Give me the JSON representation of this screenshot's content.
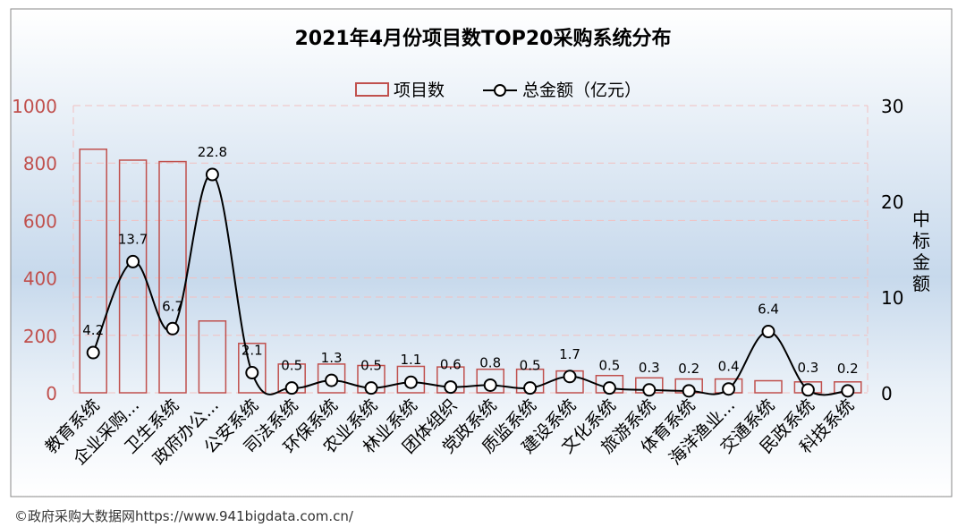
{
  "chart_data": {
    "type": "bar",
    "title": "2021年4月份项目数TOP20采购系统分布",
    "categories": [
      "教育系统",
      "企业采购...",
      "卫生系统",
      "政府办公...",
      "公安系统",
      "司法系统",
      "环保系统",
      "农业系统",
      "林业系统",
      "团体组织",
      "党政系统",
      "质监系统",
      "建设系统",
      "文化系统",
      "旅游系统",
      "体育系统",
      "海洋渔业...",
      "交通系统",
      "民政系统",
      "科技系统"
    ],
    "series": [
      {
        "name": "项目数",
        "type": "bar",
        "axis": "left",
        "values": [
          848,
          810,
          805,
          250,
          172,
          100,
          100,
          95,
          92,
          90,
          82,
          82,
          76,
          60,
          52,
          48,
          48,
          42,
          38,
          38
        ]
      },
      {
        "name": "总金额（亿元）",
        "type": "line",
        "axis": "right",
        "values": [
          4.2,
          13.7,
          6.7,
          22.8,
          2.1,
          0.5,
          1.3,
          0.5,
          1.1,
          0.6,
          0.8,
          0.5,
          1.7,
          0.5,
          0.3,
          0.2,
          0.4,
          6.4,
          0.3,
          0.2
        ]
      }
    ],
    "y_left": {
      "ylim": [
        0,
        1000
      ],
      "ticks": [
        "0",
        "200",
        "400",
        "600",
        "800",
        "1000"
      ]
    },
    "y_right": {
      "label": "中标金额",
      "ylim": [
        0,
        30
      ],
      "ticks": [
        "0",
        "10",
        "20",
        "30"
      ]
    },
    "legend": "top-center",
    "colors": {
      "bar": "#c0504d",
      "line": "#000000",
      "left_axis": "#c0504d",
      "grid": "#f2c0c0"
    }
  },
  "footer": "©政府采购大数据网https://www.941bigdata.com.cn/"
}
